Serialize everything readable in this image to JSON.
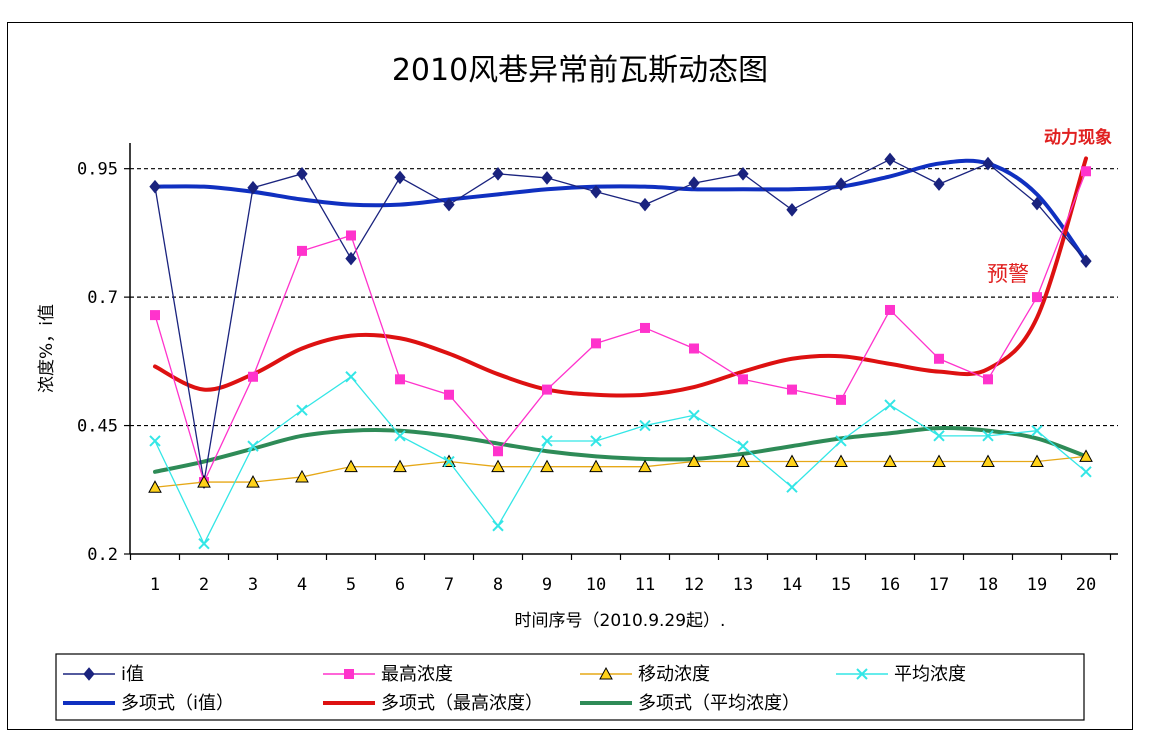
{
  "chart_data": {
    "type": "line",
    "title": "2010风巷异常前瓦斯动态图",
    "xlabel": "时间序号（2010.9.29起）.",
    "ylabel": "浓度%，i值",
    "ylim": [
      0.2,
      1.0
    ],
    "yticks": [
      0.2,
      0.45,
      0.7,
      0.95
    ],
    "yticks_labels": [
      "0.2",
      "0.45",
      "0.7",
      "0.95"
    ],
    "gridlines": "dashed at 0.45, 0.7, 0.95",
    "categories": [
      "1",
      "2",
      "3",
      "4",
      "5",
      "6",
      "7",
      "8",
      "9",
      "10",
      "11",
      "12",
      "13",
      "14",
      "15",
      "16",
      "17",
      "18",
      "19",
      "20"
    ],
    "series": [
      {
        "name": "i值",
        "color": "#1a237e",
        "marker": "diamond",
        "values": [
          0.915,
          0.34,
          0.913,
          0.94,
          0.775,
          0.933,
          0.88,
          0.94,
          0.932,
          0.905,
          0.88,
          0.922,
          0.94,
          0.87,
          0.92,
          0.968,
          0.92,
          0.96,
          0.882,
          0.77
        ]
      },
      {
        "name": "最高浓度",
        "color": "#ff33cc",
        "marker": "square",
        "values": [
          0.665,
          0.34,
          0.545,
          0.79,
          0.82,
          0.54,
          0.51,
          0.4,
          0.52,
          0.61,
          0.64,
          0.6,
          0.54,
          0.52,
          0.5,
          0.675,
          0.58,
          0.54,
          0.7,
          0.945
        ]
      },
      {
        "name": "移动浓度",
        "color": "#e6a817",
        "marker": "triangle",
        "values": [
          0.33,
          0.34,
          0.34,
          0.35,
          0.37,
          0.37,
          0.38,
          0.37,
          0.37,
          0.37,
          0.37,
          0.38,
          0.38,
          0.38,
          0.38,
          0.38,
          0.38,
          0.38,
          0.38,
          0.39
        ]
      },
      {
        "name": "平均浓度",
        "color": "#33e6e6",
        "marker": "x",
        "values": [
          0.42,
          0.22,
          0.41,
          0.48,
          0.545,
          0.43,
          0.38,
          0.255,
          0.42,
          0.42,
          0.45,
          0.47,
          0.41,
          0.33,
          0.42,
          0.49,
          0.43,
          0.43,
          0.44,
          0.36
        ]
      },
      {
        "name": "多项式（i值）",
        "color": "#1030c0",
        "trend": true,
        "values": [
          0.915,
          0.915,
          0.905,
          0.89,
          0.88,
          0.88,
          0.89,
          0.9,
          0.91,
          0.915,
          0.915,
          0.91,
          0.91,
          0.91,
          0.915,
          0.935,
          0.96,
          0.96,
          0.9,
          0.77
        ]
      },
      {
        "name": "多项式（最高浓度）",
        "color": "#dd1111",
        "trend": true,
        "values": [
          0.565,
          0.52,
          0.55,
          0.6,
          0.625,
          0.62,
          0.59,
          0.55,
          0.52,
          0.51,
          0.51,
          0.525,
          0.555,
          0.58,
          0.585,
          0.57,
          0.555,
          0.56,
          0.66,
          0.97
        ]
      },
      {
        "name": "多项式（平均浓度）",
        "color": "#2e8b57",
        "trend": true,
        "values": [
          0.36,
          0.38,
          0.405,
          0.43,
          0.44,
          0.44,
          0.43,
          0.415,
          0.4,
          0.39,
          0.385,
          0.385,
          0.395,
          0.41,
          0.425,
          0.435,
          0.445,
          0.44,
          0.425,
          0.39
        ]
      }
    ],
    "annotations": [
      "动力现象",
      "预警"
    ],
    "legend": {
      "row1": [
        "i值",
        "最高浓度",
        "移动浓度",
        "平均浓度"
      ],
      "row2": [
        "多项式（i值）",
        "多项式（最高浓度）",
        "多项式（平均浓度）"
      ],
      "placement": "bottom"
    }
  }
}
